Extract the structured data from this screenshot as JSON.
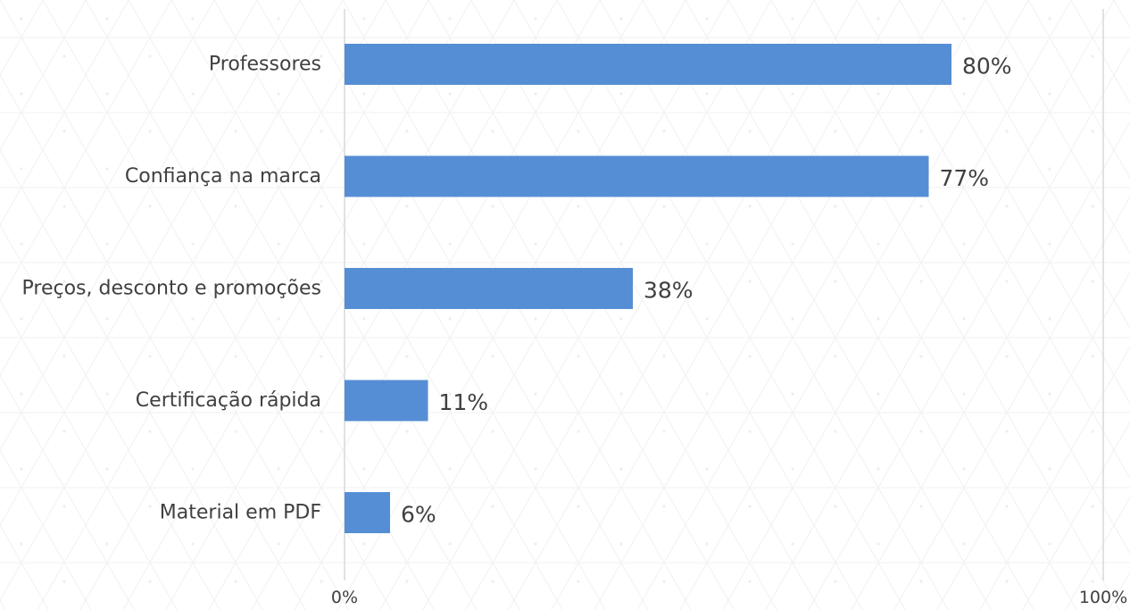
{
  "chart_data": {
    "type": "bar",
    "orientation": "horizontal",
    "categories": [
      "Professores",
      "Confiança na marca",
      "Preços, desconto e promoções",
      "Certificação rápida",
      "Material em PDF"
    ],
    "values": [
      80,
      77,
      38,
      11,
      6
    ],
    "data_labels": [
      "80%",
      "77%",
      "38%",
      "11%",
      "6%"
    ],
    "xlim": [
      0,
      100
    ],
    "x_ticks": [
      0,
      100
    ],
    "x_tick_labels": [
      "0%",
      "100%"
    ],
    "title": "",
    "xlabel": "",
    "ylabel": "",
    "grid": "vertical major gridlines",
    "legend": "none",
    "bar_color": "#558ED5",
    "gridline_color": "#D9D9D9",
    "text_color": "#404040"
  }
}
